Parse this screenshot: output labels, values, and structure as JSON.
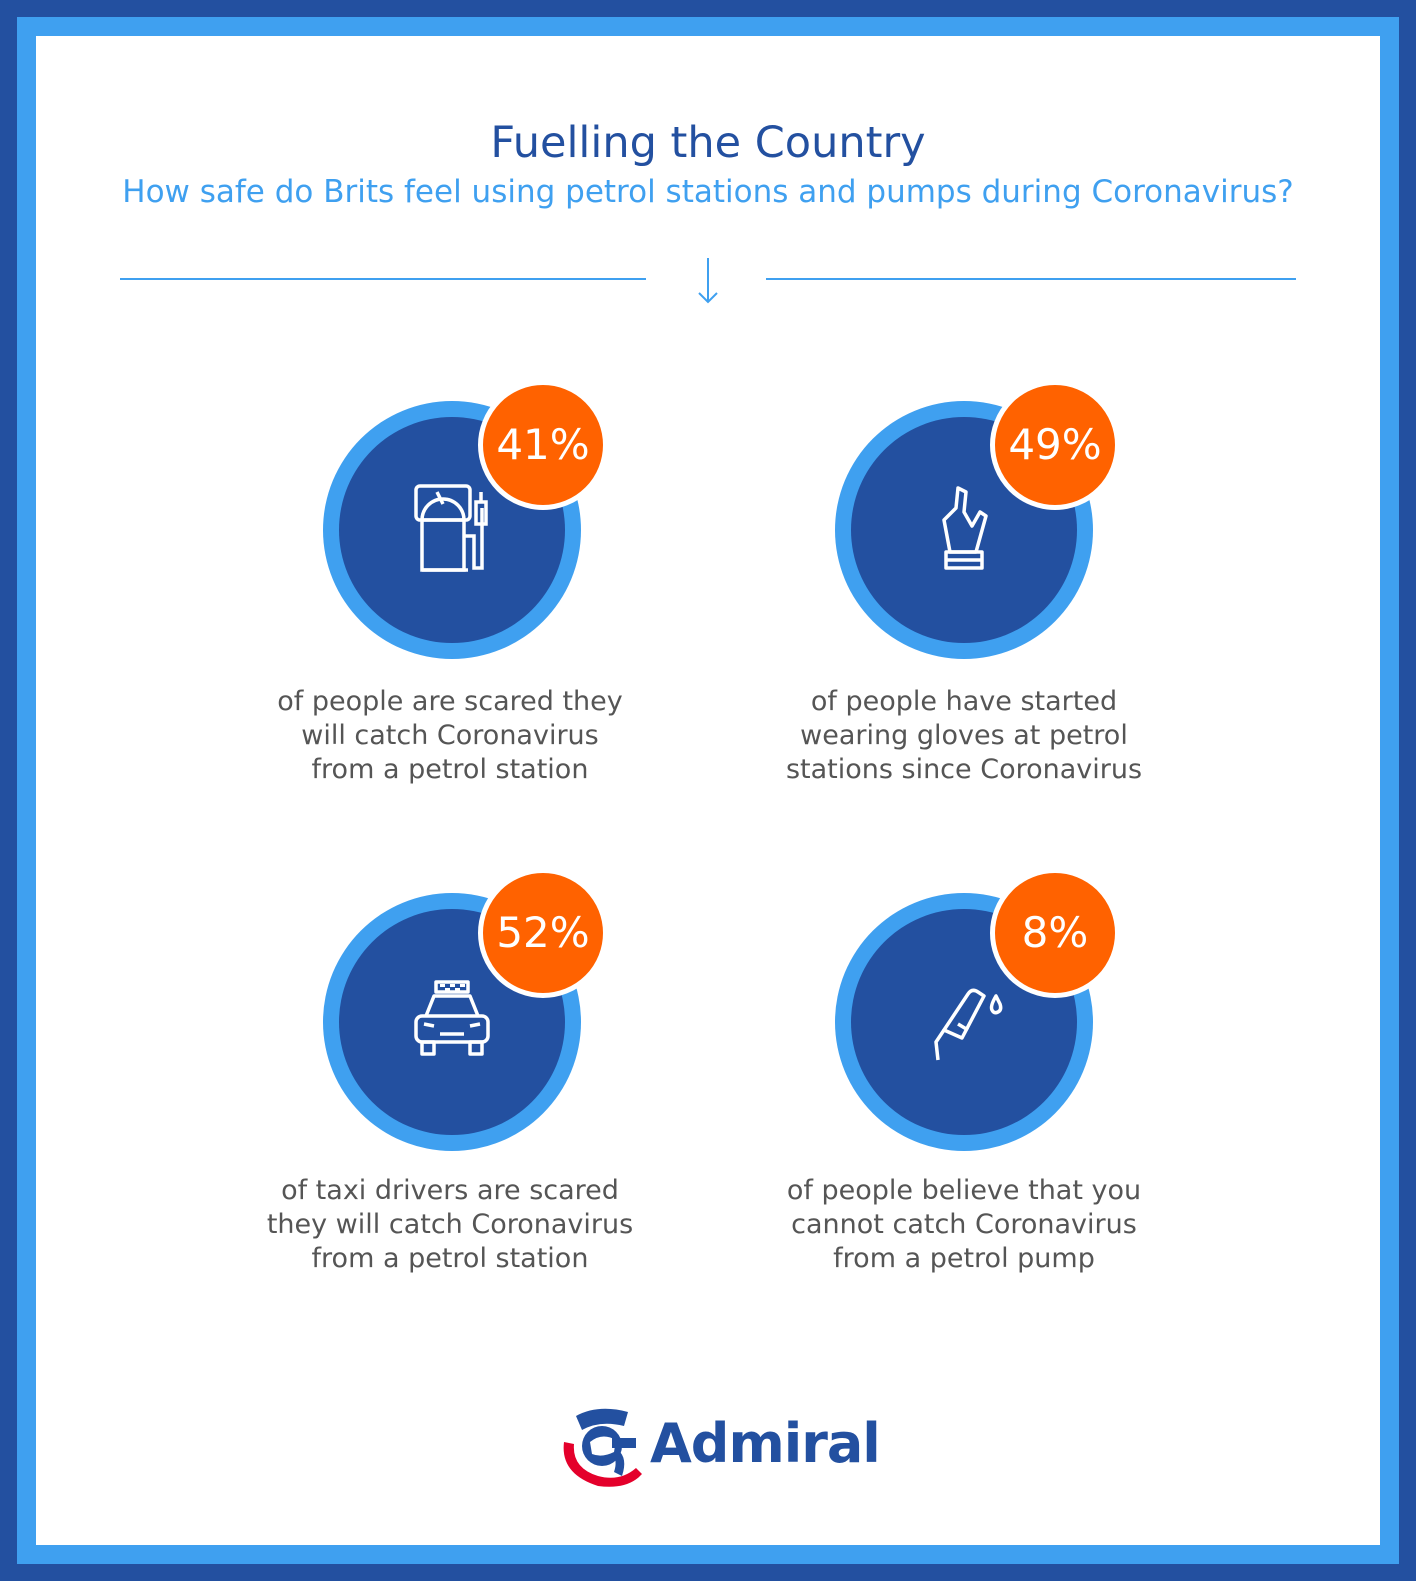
{
  "header": {
    "title": "Fuelling the Country",
    "subtitle": "How safe do Brits feel using petrol stations and pumps during Coronavirus?"
  },
  "stats": [
    {
      "value": "41%",
      "icon": "petrol-pump-icon",
      "description": [
        "of people are scared they",
        "will catch Coronavirus",
        "from a petrol station"
      ]
    },
    {
      "value": "49%",
      "icon": "glove-icon",
      "description": [
        "of people have started",
        "wearing gloves at petrol",
        "stations since Coronavirus"
      ]
    },
    {
      "value": "52%",
      "icon": "taxi-icon",
      "description": [
        "of taxi drivers are scared",
        "they will catch Coronavirus",
        "from a petrol station"
      ]
    },
    {
      "value": "8%",
      "icon": "fuel-nozzle-icon",
      "description": [
        "of people believe that you",
        "cannot catch Coronavirus",
        "from a petrol pump"
      ]
    }
  ],
  "footer": {
    "brand": "Admiral"
  },
  "colors": {
    "dark_blue": "#2350a0",
    "light_blue": "#3fa0f0",
    "orange": "#ff6200",
    "text_grey": "#555555"
  }
}
